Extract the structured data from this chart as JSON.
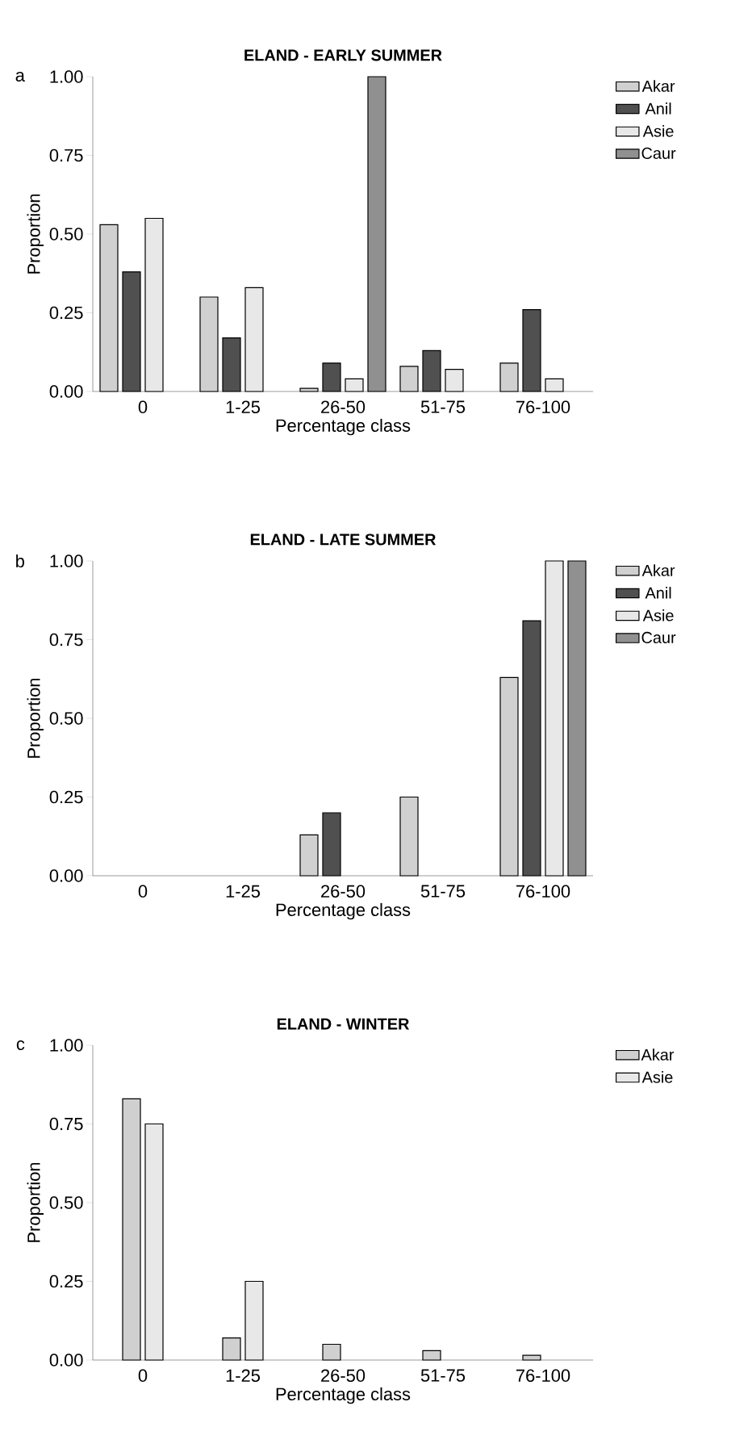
{
  "chart_data": [
    {
      "type": "bar",
      "title": "ELAND - EARLY SUMMER",
      "xlabel": "Percentage class",
      "ylabel": "Proportion",
      "annotations": [
        "a"
      ],
      "categories": [
        "0",
        "1-25",
        "26-50",
        "51-75",
        "76-100"
      ],
      "ylim": [
        0,
        1
      ],
      "yticks": [
        {
          "value": 0,
          "label": "0.00"
        },
        {
          "value": 0.25,
          "label": "0.25"
        },
        {
          "value": 0.5,
          "label": "0.50"
        },
        {
          "value": 0.75,
          "label": "0.75"
        },
        {
          "value": 1,
          "label": "1.00"
        }
      ],
      "legend": "top right",
      "series": [
        {
          "name": "Akar",
          "color": "#d0d0d0",
          "values": [
            0.53,
            0.3,
            0.01,
            0.08,
            0.09
          ]
        },
        {
          "name": "Anil",
          "color": "#505050",
          "values": [
            0.38,
            0.17,
            0.09,
            0.13,
            0.26
          ]
        },
        {
          "name": "Asie",
          "color": "#e8e8e8",
          "values": [
            0.55,
            0.33,
            0.04,
            0.07,
            0.04
          ]
        },
        {
          "name": "Caur",
          "color": "#909090",
          "values": [
            0,
            0,
            1.0,
            0,
            0
          ]
        }
      ]
    },
    {
      "type": "bar",
      "title": "ELAND - LATE SUMMER",
      "xlabel": "Percentage class",
      "ylabel": "Proportion",
      "annotations": [
        "b"
      ],
      "categories": [
        "0",
        "1-25",
        "26-50",
        "51-75",
        "76-100"
      ],
      "ylim": [
        0,
        1
      ],
      "yticks": [
        {
          "value": 0,
          "label": "0.00"
        },
        {
          "value": 0.25,
          "label": "0.25"
        },
        {
          "value": 0.5,
          "label": "0.50"
        },
        {
          "value": 0.75,
          "label": "0.75"
        },
        {
          "value": 1,
          "label": "1.00"
        }
      ],
      "legend": "top right",
      "series": [
        {
          "name": "Akar",
          "color": "#d0d0d0",
          "values": [
            0,
            0,
            0.13,
            0.25,
            0.63
          ]
        },
        {
          "name": "Anil",
          "color": "#505050",
          "values": [
            0,
            0,
            0.2,
            0,
            0.81
          ]
        },
        {
          "name": "Asie",
          "color": "#e8e8e8",
          "values": [
            0,
            0,
            0,
            0,
            1.0
          ]
        },
        {
          "name": "Caur",
          "color": "#909090",
          "values": [
            0,
            0,
            0,
            0,
            1.0
          ]
        }
      ]
    },
    {
      "type": "bar",
      "title": "ELAND - WINTER",
      "xlabel": "Percentage class",
      "ylabel": "Proportion",
      "annotations": [
        "c"
      ],
      "categories": [
        "0",
        "1-25",
        "26-50",
        "51-75",
        "76-100"
      ],
      "ylim": [
        0,
        1
      ],
      "yticks": [
        {
          "value": 0,
          "label": "0.00"
        },
        {
          "value": 0.25,
          "label": "0.25"
        },
        {
          "value": 0.5,
          "label": "0.50"
        },
        {
          "value": 0.75,
          "label": "0.75"
        },
        {
          "value": 1,
          "label": "1.00"
        }
      ],
      "legend": "top right",
      "series": [
        {
          "name": "Akar",
          "color": "#d0d0d0",
          "values": [
            0.83,
            0.07,
            0.05,
            0.03,
            0.015
          ]
        },
        {
          "name": "Asie",
          "color": "#e8e8e8",
          "values": [
            0.75,
            0.25,
            0,
            0,
            0
          ]
        }
      ]
    }
  ]
}
